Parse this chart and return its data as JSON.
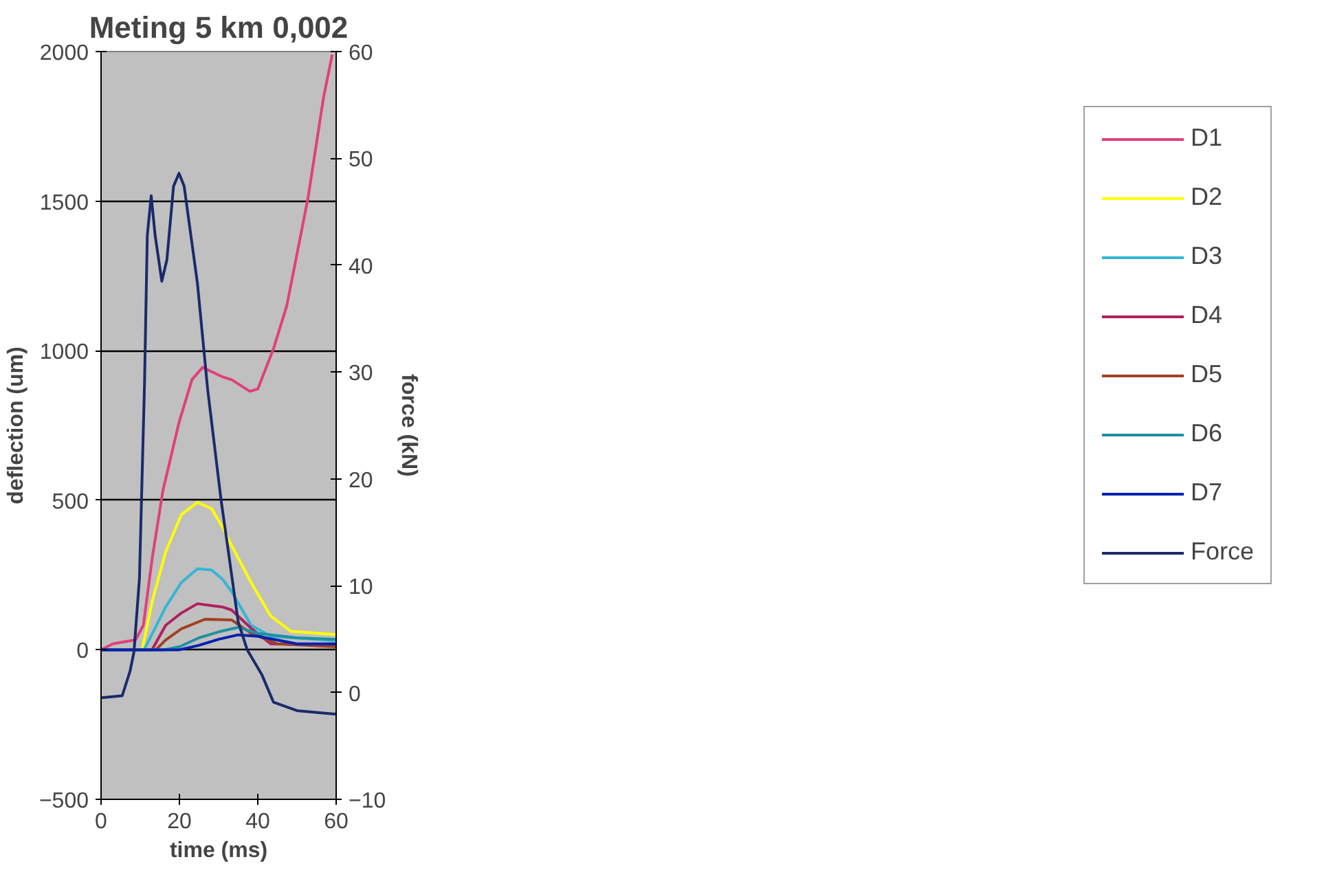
{
  "chart_data": {
    "type": "line",
    "title": "Meting 5 km 0,002",
    "xlabel": "time (ms)",
    "ylabel": "deflection (um)",
    "y2label": "force (kN)",
    "xlim": [
      0,
      60
    ],
    "xticks": [
      0,
      20,
      40,
      60
    ],
    "ylim": [
      -500,
      2000
    ],
    "yticks": [
      -500,
      0,
      500,
      1000,
      1500,
      2000
    ],
    "y2lim": [
      -10,
      60
    ],
    "y2ticks": [
      -10,
      0,
      10,
      20,
      30,
      40,
      50,
      60
    ],
    "grid": "y",
    "legend": "right",
    "marker": "none",
    "line_style": "solid",
    "series": [
      {
        "name": "D1",
        "color": "#e0407a",
        "x": [
          0,
          3,
          8.8,
          10.8,
          13.1,
          15.8,
          19.9,
          23.2,
          25.9,
          30.9,
          33.3,
          38,
          40,
          44,
          47.4,
          52.8,
          56.8,
          59
        ],
        "values": [
          0,
          20,
          33,
          82,
          310,
          533,
          760,
          903,
          944,
          913,
          903,
          864,
          872,
          1006,
          1150,
          1509,
          1848,
          1990
        ]
      },
      {
        "name": "D2",
        "color": "#ffff00",
        "x": [
          0,
          10.5,
          13.1,
          16.5,
          20.5,
          24.6,
          28.2,
          31,
          33.3,
          38.3,
          43.3,
          48.4,
          60
        ],
        "values": [
          0,
          0,
          164,
          328,
          452,
          493,
          472,
          410,
          349,
          225,
          113,
          62,
          51
        ]
      },
      {
        "name": "D3",
        "color": "#33b5d5",
        "x": [
          0,
          11,
          16.5,
          20.5,
          24.6,
          28.2,
          31,
          33.3,
          38.3,
          43.3,
          60
        ],
        "values": [
          0,
          0,
          143,
          225,
          271,
          267,
          236,
          195,
          82,
          45,
          30
        ]
      },
      {
        "name": "D4",
        "color": "#b02060",
        "x": [
          0,
          13,
          16.5,
          20.5,
          24.6,
          31,
          33.3,
          38.3,
          43.3,
          60
        ],
        "values": [
          0,
          0,
          82,
          123,
          154,
          143,
          133,
          72,
          20,
          15
        ]
      },
      {
        "name": "D5",
        "color": "#a04020",
        "x": [
          0,
          14,
          16.5,
          20.5,
          26.5,
          33.3,
          38.3,
          45,
          60
        ],
        "values": [
          0,
          0,
          33,
          70,
          102,
          100,
          55,
          20,
          10
        ]
      },
      {
        "name": "D6",
        "color": "#2090a0",
        "x": [
          0,
          16,
          20,
          25,
          30,
          35,
          40,
          50,
          60
        ],
        "values": [
          0,
          0,
          10,
          40,
          60,
          75,
          55,
          40,
          35
        ]
      },
      {
        "name": "D7",
        "color": "#0020b0",
        "x": [
          0,
          20,
          25,
          30,
          35,
          40,
          50,
          60
        ],
        "values": [
          0,
          0,
          15,
          35,
          50,
          45,
          20,
          20
        ]
      },
      {
        "name": "Force",
        "color": "#1a2a6c",
        "axis": "y2",
        "x": [
          0,
          5.4,
          7.4,
          8.4,
          9.8,
          11.1,
          11.8,
          12.8,
          13.8,
          15.5,
          16.8,
          18.5,
          19.9,
          21.2,
          24.6,
          27.2,
          30.6,
          32.6,
          35,
          37.3,
          41,
          44,
          50,
          59.2,
          60
        ],
        "values": [
          -0.5,
          -0.3,
          2,
          3.8,
          10.7,
          29,
          42.8,
          46.5,
          42.8,
          38.5,
          40.5,
          47.4,
          48.6,
          47.4,
          38.3,
          28.4,
          18.1,
          12.9,
          6.6,
          4,
          1.7,
          -0.9,
          -1.7,
          -2,
          -2
        ]
      }
    ]
  }
}
